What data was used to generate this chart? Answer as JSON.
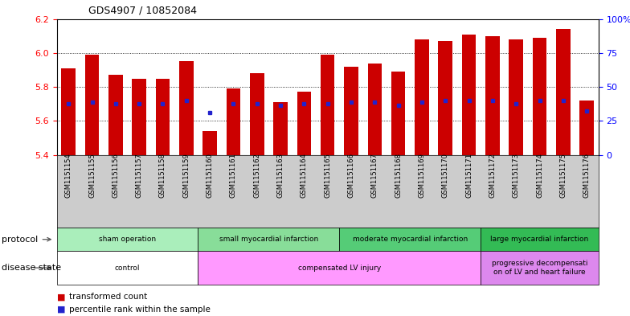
{
  "title": "GDS4907 / 10852084",
  "samples": [
    "GSM1151154",
    "GSM1151155",
    "GSM1151156",
    "GSM1151157",
    "GSM1151158",
    "GSM1151159",
    "GSM1151160",
    "GSM1151161",
    "GSM1151162",
    "GSM1151163",
    "GSM1151164",
    "GSM1151165",
    "GSM1151166",
    "GSM1151167",
    "GSM1151168",
    "GSM1151169",
    "GSM1151170",
    "GSM1151171",
    "GSM1151172",
    "GSM1151173",
    "GSM1151174",
    "GSM1151175",
    "GSM1151176"
  ],
  "bar_values": [
    5.91,
    5.99,
    5.87,
    5.85,
    5.85,
    5.95,
    5.54,
    5.79,
    5.88,
    5.71,
    5.77,
    5.99,
    5.92,
    5.94,
    5.89,
    6.08,
    6.07,
    6.11,
    6.1,
    6.08,
    6.09,
    6.14,
    5.72
  ],
  "percentile_values": [
    5.7,
    5.71,
    5.7,
    5.7,
    5.7,
    5.72,
    5.648,
    5.7,
    5.7,
    5.692,
    5.7,
    5.7,
    5.712,
    5.712,
    5.692,
    5.712,
    5.72,
    5.72,
    5.72,
    5.7,
    5.72,
    5.72,
    5.658
  ],
  "bar_color": "#cc0000",
  "percentile_color": "#2222cc",
  "ymin": 5.4,
  "ymax": 6.2,
  "yticks_left": [
    5.4,
    5.6,
    5.8,
    6.0,
    6.2
  ],
  "yticks_right_vals": [
    0,
    25,
    50,
    75,
    100
  ],
  "yticks_right_labels": [
    "0",
    "25",
    "50",
    "75",
    "100%"
  ],
  "grid_lines": [
    5.6,
    5.8,
    6.0
  ],
  "protocols": [
    {
      "label": "sham operation",
      "start": 0,
      "end": 5,
      "color": "#aaeebb"
    },
    {
      "label": "small myocardial infarction",
      "start": 6,
      "end": 11,
      "color": "#88dd99"
    },
    {
      "label": "moderate myocardial infarction",
      "start": 12,
      "end": 17,
      "color": "#55cc77"
    },
    {
      "label": "large myocardial infarction",
      "start": 18,
      "end": 22,
      "color": "#33bb55"
    }
  ],
  "disease_states": [
    {
      "label": "control",
      "start": 0,
      "end": 5,
      "color": "#ffffff"
    },
    {
      "label": "compensated LV injury",
      "start": 6,
      "end": 17,
      "color": "#ff99ff"
    },
    {
      "label": "progressive decompensati\non of LV and heart failure",
      "start": 18,
      "end": 22,
      "color": "#dd88ee"
    }
  ],
  "xtick_bg_color": "#cccccc"
}
